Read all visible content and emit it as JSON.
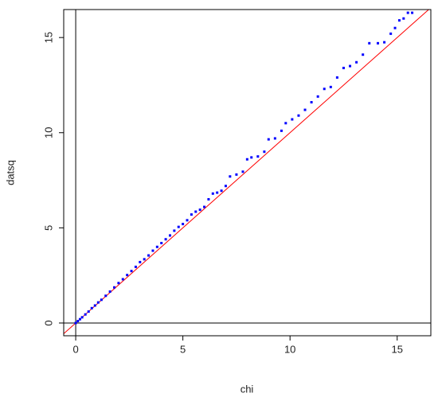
{
  "chart_data": {
    "type": "scatter",
    "x_label": "chi",
    "y_label": "datsq",
    "color": "blue",
    "reference_line": {
      "slope": 1,
      "intercept": 0,
      "color": "red"
    },
    "hlines": [
      0
    ],
    "vlines": [
      0
    ],
    "xlim": [
      -0.56,
      16.57
    ],
    "ylim": [
      -0.67,
      16.47
    ],
    "xticks": [
      0,
      5,
      10,
      15
    ],
    "yticks": [
      0,
      5,
      10,
      15
    ],
    "x": [
      0,
      0.1,
      0.2,
      0.3,
      0.45,
      0.6,
      0.75,
      0.9,
      1.05,
      1.2,
      1.4,
      1.6,
      1.8,
      2.0,
      2.2,
      2.4,
      2.6,
      2.8,
      3.0,
      3.2,
      3.4,
      3.6,
      3.8,
      4.0,
      4.2,
      4.4,
      4.6,
      4.8,
      5.0,
      5.2,
      5.4,
      5.6,
      5.8,
      6.0,
      6.2,
      6.4,
      6.6,
      6.8,
      7.0,
      7.2,
      7.5,
      7.8,
      8.0,
      8.2,
      8.5,
      8.8,
      9.0,
      9.3,
      9.6,
      9.8,
      10.1,
      10.4,
      10.7,
      11.0,
      11.3,
      11.6,
      11.9,
      12.2,
      12.5,
      12.8,
      13.1,
      13.4,
      13.7,
      14.1,
      14.4,
      14.7,
      14.9,
      15.1,
      15.3,
      15.5,
      15.7
    ],
    "values": [
      0,
      0.1,
      0.2,
      0.3,
      0.45,
      0.6,
      0.78,
      0.92,
      1.08,
      1.22,
      1.43,
      1.65,
      1.87,
      2.1,
      2.3,
      2.52,
      2.73,
      2.95,
      3.2,
      3.35,
      3.55,
      3.8,
      4.0,
      4.2,
      4.4,
      4.6,
      4.85,
      5.05,
      5.2,
      5.4,
      5.7,
      5.85,
      5.95,
      6.1,
      6.5,
      6.8,
      6.85,
      6.95,
      7.2,
      7.7,
      7.8,
      7.95,
      8.6,
      8.7,
      8.75,
      9.0,
      9.65,
      9.7,
      10.1,
      10.5,
      10.7,
      10.9,
      11.2,
      11.6,
      11.9,
      12.3,
      12.4,
      12.9,
      13.4,
      13.5,
      13.7,
      14.1,
      14.7,
      14.7,
      14.75,
      15.2,
      15.5,
      15.9,
      16.0,
      16.3,
      16.3
    ]
  }
}
